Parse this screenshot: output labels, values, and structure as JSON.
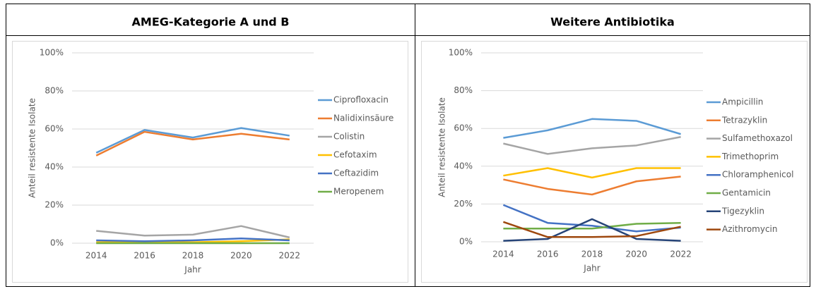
{
  "chart_data": [
    {
      "type": "line",
      "title": "AMEG-Kategorie A und B",
      "y_label": "Anteil resistente Isolate",
      "x_label": "Jahr",
      "categories": [
        "2014",
        "2016",
        "2018",
        "2020",
        "2022"
      ],
      "ylim": [
        0,
        100
      ],
      "yticks": [
        {
          "value": 0,
          "label": "0%"
        },
        {
          "value": 20,
          "label": "20%"
        },
        {
          "value": 40,
          "label": "40%"
        },
        {
          "value": 60,
          "label": "60%"
        },
        {
          "value": 80,
          "label": "80%"
        },
        {
          "value": 100,
          "label": "100%"
        }
      ],
      "grid": true,
      "legend": "right",
      "series": [
        {
          "name": "Ciprofloxacin",
          "color": "#5b9bd5",
          "values": [
            47.5,
            59.5,
            55.5,
            60.5,
            56.5
          ]
        },
        {
          "name": "Nalidixinsäure",
          "color": "#ed7d31",
          "values": [
            46,
            58.5,
            54.5,
            57.5,
            54.5
          ]
        },
        {
          "name": "Colistin",
          "color": "#a5a5a5",
          "values": [
            6.5,
            4,
            4.5,
            9,
            3
          ]
        },
        {
          "name": "Cefotaxim",
          "color": "#ffc000",
          "values": [
            0.5,
            0.5,
            0.5,
            1,
            2
          ]
        },
        {
          "name": "Ceftazidim",
          "color": "#4472c4",
          "values": [
            1.5,
            1,
            1.5,
            2.5,
            1.5
          ]
        },
        {
          "name": "Meropenem",
          "color": "#70ad47",
          "values": [
            0,
            0,
            0,
            0,
            0
          ]
        }
      ]
    },
    {
      "type": "line",
      "title": "Weitere Antibiotika",
      "y_label": "Anteil resistente Isolate",
      "x_label": "Jahr",
      "categories": [
        "2014",
        "2016",
        "2018",
        "2020",
        "2022"
      ],
      "ylim": [
        0,
        100
      ],
      "yticks": [
        {
          "value": 0,
          "label": "0%"
        },
        {
          "value": 20,
          "label": "20%"
        },
        {
          "value": 40,
          "label": "40%"
        },
        {
          "value": 60,
          "label": "60%"
        },
        {
          "value": 80,
          "label": "80%"
        },
        {
          "value": 100,
          "label": "100%"
        }
      ],
      "grid": true,
      "legend": "right",
      "series": [
        {
          "name": "Ampicillin",
          "color": "#5b9bd5",
          "values": [
            55,
            59,
            65,
            64,
            57
          ]
        },
        {
          "name": "Tetrazyklin",
          "color": "#ed7d31",
          "values": [
            33,
            28,
            25,
            32,
            34.5
          ]
        },
        {
          "name": "Sulfamethoxazol",
          "color": "#a5a5a5",
          "values": [
            52,
            46.5,
            49.5,
            51,
            55.5
          ]
        },
        {
          "name": "Trimethoprim",
          "color": "#ffc000",
          "values": [
            35,
            39,
            34,
            39,
            39
          ]
        },
        {
          "name": "Chloramphenicol",
          "color": "#4472c4",
          "values": [
            19.5,
            10,
            8.5,
            5.5,
            7.5
          ]
        },
        {
          "name": "Gentamicin",
          "color": "#70ad47",
          "values": [
            7,
            7,
            7,
            9.5,
            10
          ]
        },
        {
          "name": "Tigezyklin",
          "color": "#264478",
          "values": [
            0.5,
            1.5,
            12,
            1.5,
            0.5
          ]
        },
        {
          "name": "Azithromycin",
          "color": "#9e480e",
          "values": [
            10.5,
            2.5,
            2.5,
            3,
            8
          ]
        }
      ]
    }
  ]
}
